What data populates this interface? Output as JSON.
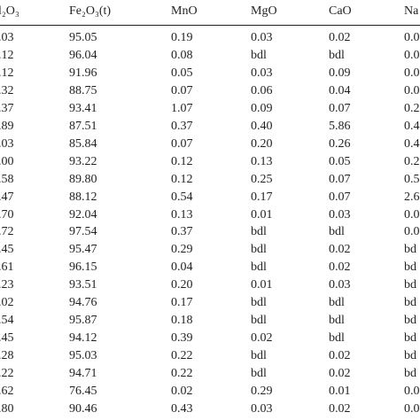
{
  "table": {
    "header": [
      "l₂O₃",
      "Fe₂O₃(t)",
      "MnO",
      "MgO",
      "CaO",
      "Na"
    ],
    "rows": [
      [
        ".03",
        "95.05",
        "0.19",
        "0.03",
        "0.02",
        "0.0"
      ],
      [
        ".12",
        "96.04",
        "0.08",
        "bdl",
        "bdl",
        "0.0"
      ],
      [
        ".12",
        "91.96",
        "0.05",
        "0.03",
        "0.09",
        "0.0"
      ],
      [
        ".32",
        "88.75",
        "0.07",
        "0.06",
        "0.04",
        "0.0"
      ],
      [
        ".37",
        "93.41",
        "1.07",
        "0.09",
        "0.07",
        "0.2"
      ],
      [
        ".89",
        "87.51",
        "0.37",
        "0.40",
        "5.86",
        "0.4"
      ],
      [
        ".03",
        "85.84",
        "0.07",
        "0.20",
        "0.26",
        "0.4"
      ],
      [
        ".00",
        "93.22",
        "0.12",
        "0.13",
        "0.05",
        "0.2"
      ],
      [
        ".58",
        "89.80",
        "0.12",
        "0.25",
        "0.07",
        "0.5"
      ],
      [
        ".47",
        "88.12",
        "0.54",
        "0.17",
        "0.07",
        "2.6"
      ],
      [
        ".70",
        "92.04",
        "0.13",
        "0.01",
        "0.03",
        "0.0"
      ],
      [
        ".72",
        "97.54",
        "0.37",
        "bdl",
        "bdl",
        "0.0"
      ],
      [
        ".45",
        "95.47",
        "0.29",
        "bdl",
        "0.02",
        "bd"
      ],
      [
        ".61",
        "96.15",
        "0.04",
        "bdl",
        "0.02",
        "bd"
      ],
      [
        ".23",
        "93.51",
        "0.20",
        "0.01",
        "0.03",
        "bd"
      ],
      [
        ".02",
        "94.76",
        "0.17",
        "bdl",
        "bdl",
        "bd"
      ],
      [
        ".54",
        "95.87",
        "0.18",
        "bdl",
        "bdl",
        "bd"
      ],
      [
        ".45",
        "94.12",
        "0.39",
        "0.02",
        "bdl",
        "bd"
      ],
      [
        ".28",
        "95.03",
        "0.22",
        "bdl",
        "0.02",
        "bd"
      ],
      [
        ".22",
        "94.71",
        "0.22",
        "bdl",
        "0.02",
        "bd"
      ],
      [
        ".62",
        "76.45",
        "0.02",
        "0.29",
        "0.01",
        "0.0"
      ],
      [
        ".80",
        "90.46",
        "0.43",
        "0.03",
        "0.02",
        "0.0"
      ]
    ]
  }
}
